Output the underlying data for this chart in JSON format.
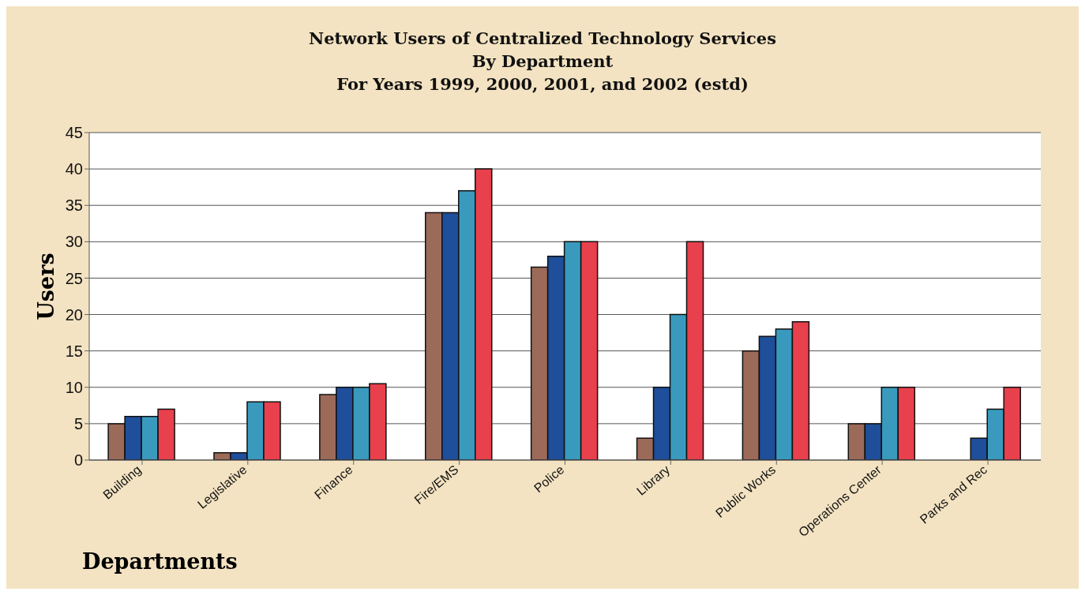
{
  "chart_data": {
    "type": "bar",
    "title": "Network Users of Centralized Technology Services\nBy Department\nFor Years 1999, 2000, 2001,  and 2002 (estd)",
    "xlabel": "Departments",
    "ylabel": "Users",
    "categories": [
      "Building",
      "Legislative",
      "Finance",
      "Fire/EMS",
      "Police",
      "Library",
      "Public Works",
      "Operations Center",
      "Parks and Rec"
    ],
    "series": [
      {
        "color": "#9c6a58",
        "values": [
          5,
          1,
          9,
          34,
          26.5,
          3,
          15,
          5,
          null
        ]
      },
      {
        "color": "#1f4e9a",
        "values": [
          6,
          1,
          10,
          34,
          28,
          10,
          17,
          5,
          3
        ]
      },
      {
        "color": "#3a9abd",
        "values": [
          6,
          8,
          10,
          37,
          30,
          20,
          18,
          10,
          7
        ]
      },
      {
        "color": "#e8404c",
        "values": [
          7,
          8,
          10.5,
          40,
          30,
          30,
          19,
          10,
          10
        ]
      }
    ],
    "ylim": [
      0,
      45
    ],
    "yticks": [
      0,
      5,
      10,
      15,
      20,
      25,
      30,
      35,
      40,
      45
    ],
    "grid": "y",
    "legend": false
  }
}
